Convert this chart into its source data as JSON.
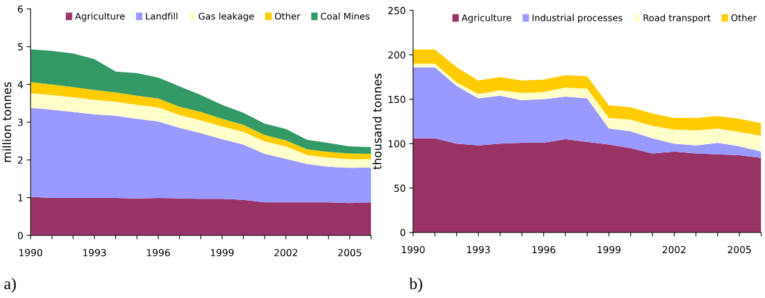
{
  "chart_data": [
    {
      "type": "area",
      "stacked": true,
      "ylabel": "million tonnes",
      "annotations": [
        "a)"
      ],
      "legend": "top",
      "grid": false,
      "x": [
        1990,
        1991,
        1992,
        1993,
        1994,
        1995,
        1996,
        1997,
        1998,
        1999,
        2000,
        2001,
        2002,
        2003,
        2004,
        2005,
        2006
      ],
      "xlim": [
        1990,
        2006
      ],
      "ylim": [
        0,
        6
      ],
      "yticks": [
        0,
        1,
        2,
        3,
        4,
        5,
        6
      ],
      "xticks": [
        1990,
        {
          "value": 1991,
          "label": null
        },
        {
          "value": 1992,
          "label": null
        },
        1993,
        {
          "value": 1994,
          "label": null
        },
        {
          "value": 1995,
          "label": null
        },
        1996,
        {
          "value": 1997,
          "label": null
        },
        {
          "value": 1998,
          "label": null
        },
        1999,
        {
          "value": 2000,
          "label": null
        },
        {
          "value": 2001,
          "label": null
        },
        2002,
        {
          "value": 2003,
          "label": null
        },
        {
          "value": 2004,
          "label": null
        },
        2005,
        {
          "value": 2006,
          "label": null
        }
      ],
      "series": [
        {
          "name": "Agriculture",
          "color": "#993366",
          "values": [
            1.02,
            0.99,
            0.99,
            0.99,
            0.99,
            0.98,
            0.99,
            0.98,
            0.97,
            0.97,
            0.94,
            0.88,
            0.88,
            0.88,
            0.88,
            0.86,
            0.88
          ]
        },
        {
          "name": "Landfill",
          "color": "#9999ff",
          "values": [
            2.36,
            2.34,
            2.28,
            2.22,
            2.18,
            2.11,
            2.03,
            1.87,
            1.74,
            1.58,
            1.47,
            1.28,
            1.15,
            1.01,
            0.94,
            0.93,
            0.92
          ]
        },
        {
          "name": "Gas leakage",
          "color": "#ffffcc",
          "values": [
            0.39,
            0.39,
            0.39,
            0.38,
            0.37,
            0.37,
            0.37,
            0.34,
            0.34,
            0.34,
            0.33,
            0.33,
            0.33,
            0.24,
            0.24,
            0.23,
            0.22
          ]
        },
        {
          "name": "Other",
          "color": "#ffcc00",
          "values": [
            0.29,
            0.28,
            0.27,
            0.26,
            0.25,
            0.24,
            0.24,
            0.22,
            0.22,
            0.2,
            0.19,
            0.17,
            0.16,
            0.15,
            0.15,
            0.15,
            0.14
          ]
        },
        {
          "name": "Coal Mines",
          "color": "#339966",
          "values": [
            0.87,
            0.89,
            0.89,
            0.82,
            0.55,
            0.6,
            0.55,
            0.54,
            0.45,
            0.37,
            0.32,
            0.3,
            0.3,
            0.25,
            0.24,
            0.19,
            0.18
          ]
        }
      ]
    },
    {
      "type": "area",
      "stacked": true,
      "ylabel": "thousand tonnes",
      "annotations": [
        "b)"
      ],
      "legend": "top",
      "grid": false,
      "x": [
        1990,
        1991,
        1992,
        1993,
        1994,
        1995,
        1996,
        1997,
        1998,
        1999,
        2000,
        2001,
        2002,
        2003,
        2004,
        2005,
        2006
      ],
      "xlim": [
        1990,
        2006
      ],
      "ylim": [
        0,
        250
      ],
      "yticks": [
        0,
        50,
        100,
        150,
        200,
        250
      ],
      "xticks": [
        1990,
        {
          "value": 1991,
          "label": null
        },
        {
          "value": 1992,
          "label": null
        },
        1993,
        {
          "value": 1994,
          "label": null
        },
        {
          "value": 1995,
          "label": null
        },
        1996,
        {
          "value": 1997,
          "label": null
        },
        {
          "value": 1998,
          "label": null
        },
        1999,
        {
          "value": 2000,
          "label": null
        },
        {
          "value": 2001,
          "label": null
        },
        2002,
        {
          "value": 2003,
          "label": null
        },
        {
          "value": 2004,
          "label": null
        },
        2005,
        {
          "value": 2006,
          "label": null
        }
      ],
      "series": [
        {
          "name": "Agriculture",
          "color": "#993366",
          "values": [
            106,
            106,
            100,
            98,
            100,
            101,
            101,
            105,
            102,
            99,
            95,
            89,
            91,
            89,
            88,
            87,
            84
          ]
        },
        {
          "name": "Industrial processes",
          "color": "#9999ff",
          "values": [
            80,
            80,
            65,
            53,
            54,
            48,
            49,
            48,
            49,
            18,
            19,
            17,
            9,
            9,
            13,
            10,
            7
          ]
        },
        {
          "name": "Road transport",
          "color": "#ffffcc",
          "values": [
            4,
            4,
            4,
            5,
            6,
            8,
            8,
            10,
            11,
            12,
            13,
            14,
            16,
            17,
            16,
            16,
            18
          ]
        },
        {
          "name": "Other",
          "color": "#ffcc00",
          "values": [
            16,
            16,
            17,
            15,
            15,
            14,
            14,
            14,
            14,
            14,
            14,
            14,
            13,
            14,
            14,
            15,
            14
          ]
        }
      ]
    }
  ]
}
